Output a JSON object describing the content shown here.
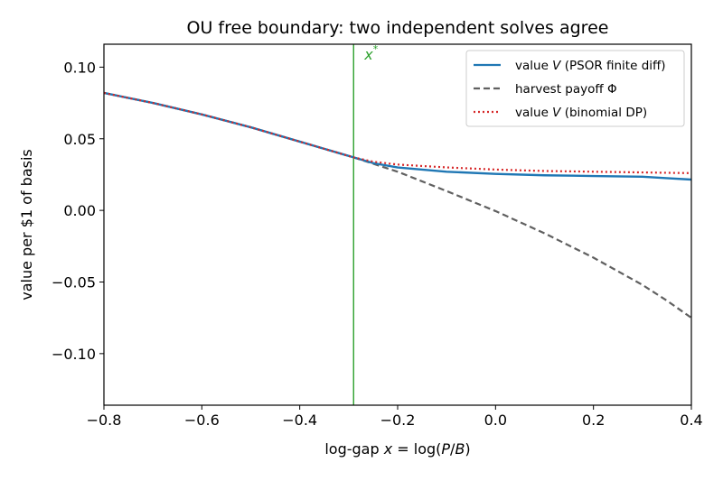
{
  "chart_data": {
    "type": "line",
    "title": "OU free boundary: two independent solves agree",
    "xlabel": "log-gap x = log(P/B)",
    "ylabel": "value per $1 of basis",
    "xlim": [
      -0.8,
      0.4
    ],
    "ylim": [
      -0.136,
      0.116
    ],
    "xticks": [
      -0.8,
      -0.6,
      -0.4,
      -0.2,
      0.0,
      0.2,
      0.4
    ],
    "yticks": [
      0.1,
      0.05,
      0.0,
      -0.05,
      -0.1
    ],
    "xtick_labels": [
      "−0.8",
      "−0.6",
      "−0.4",
      "−0.2",
      "0.0",
      "0.2",
      "0.4"
    ],
    "ytick_labels": [
      "0.10",
      "0.05",
      "0.00",
      "−0.05",
      "−0.10"
    ],
    "grid": false,
    "legend_position": "top-right",
    "boundary": {
      "x": -0.29,
      "label": "x*",
      "color": "#2ca02c"
    },
    "series": [
      {
        "name": "value V (PSOR finite diff)",
        "color": "#1f77b4",
        "style": "solid",
        "x": [
          -0.8,
          -0.7,
          -0.6,
          -0.5,
          -0.4,
          -0.35,
          -0.29,
          -0.25,
          -0.2,
          -0.1,
          0.0,
          0.1,
          0.2,
          0.3,
          0.35,
          0.4
        ],
        "y": [
          0.082,
          0.075,
          0.067,
          0.058,
          0.048,
          0.043,
          0.037,
          0.033,
          0.03,
          0.027,
          0.0255,
          0.0245,
          0.024,
          0.0235,
          0.0225,
          0.0215
        ]
      },
      {
        "name": "harvest payoff Φ",
        "color": "#606060",
        "style": "dashed",
        "x": [
          -0.8,
          -0.7,
          -0.6,
          -0.5,
          -0.4,
          -0.35,
          -0.29,
          -0.2,
          -0.1,
          0.0,
          0.1,
          0.2,
          0.3,
          0.35,
          0.4
        ],
        "y": [
          0.082,
          0.075,
          0.067,
          0.058,
          0.048,
          0.043,
          0.037,
          0.027,
          0.0135,
          -0.0005,
          -0.016,
          -0.033,
          -0.052,
          -0.063,
          -0.075
        ]
      },
      {
        "name": "value V (binomial DP)",
        "color": "#d62728",
        "style": "dotted",
        "x": [
          -0.8,
          -0.7,
          -0.6,
          -0.5,
          -0.4,
          -0.35,
          -0.29,
          -0.25,
          -0.2,
          -0.1,
          0.0,
          0.1,
          0.2,
          0.3,
          0.4
        ],
        "y": [
          0.082,
          0.075,
          0.067,
          0.058,
          0.048,
          0.043,
          0.037,
          0.034,
          0.032,
          0.03,
          0.0285,
          0.0275,
          0.027,
          0.0265,
          0.026
        ]
      }
    ]
  }
}
